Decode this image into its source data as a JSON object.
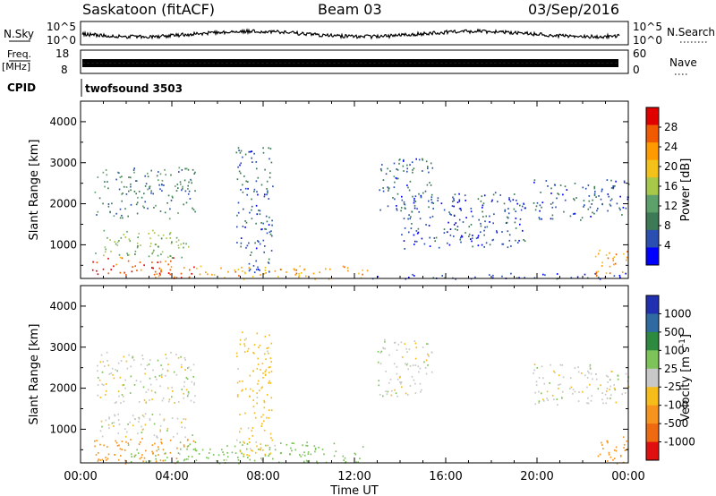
{
  "header": {
    "station": "Saskatoon (fitACF)",
    "beam": "Beam 03",
    "date": "03/Sep/2016"
  },
  "nsky_panel": {
    "label": "N.Sky",
    "left_ticks": [
      "10^5",
      "10^0"
    ],
    "right_ticks": [
      "10^5",
      "10^0"
    ],
    "right_label": "N.Search"
  },
  "freq_panel": {
    "label_top": "Freq.",
    "label_bottom": "[MHz]",
    "left_ticks": [
      "18",
      "8"
    ],
    "right_ticks": [
      "60",
      "0"
    ],
    "right_label": "Nave"
  },
  "cpid_panel": {
    "label": "CPID",
    "value": "twofsound 3503"
  },
  "colors": {
    "power_scale": [
      "#0000ff",
      "#2a4fb0",
      "#3e7a55",
      "#5ea06a",
      "#a8c84a",
      "#f2c21a",
      "#ff9a00",
      "#f05a00",
      "#e00000"
    ],
    "velocity_scale": [
      "#2030b0",
      "#2f6aa0",
      "#2e8a3e",
      "#7dc35a",
      "#c8c8c8",
      "#f6bd1a",
      "#f7941d",
      "#ee6a10",
      "#e01010"
    ]
  },
  "chart_data": [
    {
      "type": "heatmap",
      "name": "power",
      "ylabel": "Slant Range [km]",
      "yticks": [
        "1000",
        "2000",
        "3000",
        "4000"
      ],
      "ylim": [
        180,
        4500
      ],
      "xlim": [
        "00:00",
        "24:00"
      ],
      "xticks": [
        "00:00",
        "04:00",
        "08:00",
        "12:00",
        "16:00",
        "20:00",
        "00:00"
      ],
      "colorbar_label": "Power [dB]",
      "colorbar_ticks": [
        "4",
        "8",
        "12",
        "16",
        "20",
        "24",
        "28"
      ],
      "colorbar_range": [
        0,
        32
      ],
      "scatter_regions": [
        {
          "t0": 0.5,
          "t1": 5.0,
          "r0": 180,
          "r1": 700,
          "level": 27
        },
        {
          "t0": 5.0,
          "t1": 12.6,
          "r0": 180,
          "r1": 500,
          "level": 22
        },
        {
          "t0": 0.6,
          "t1": 4.8,
          "r0": 700,
          "r1": 1400,
          "level": 14
        },
        {
          "t0": 0.6,
          "t1": 5.0,
          "r0": 1650,
          "r1": 2900,
          "level": 9
        },
        {
          "t0": 6.8,
          "t1": 8.4,
          "r0": 300,
          "r1": 3400,
          "level": 6
        },
        {
          "t0": 13.0,
          "t1": 15.4,
          "r0": 1800,
          "r1": 3200,
          "level": 7
        },
        {
          "t0": 14.0,
          "t1": 19.5,
          "r0": 900,
          "r1": 2300,
          "level": 5
        },
        {
          "t0": 19.8,
          "t1": 24.0,
          "r0": 1600,
          "r1": 2600,
          "level": 6
        },
        {
          "t0": 22.5,
          "t1": 24.0,
          "r0": 180,
          "r1": 900,
          "level": 24
        },
        {
          "t0": 12.6,
          "t1": 24.0,
          "r0": 180,
          "r1": 320,
          "level": 4
        }
      ]
    },
    {
      "type": "heatmap",
      "name": "velocity",
      "ylabel": "Slant Range [km]",
      "yticks": [
        "1000",
        "2000",
        "3000",
        "4000"
      ],
      "ylim": [
        180,
        4500
      ],
      "xlim": [
        "00:00",
        "24:00"
      ],
      "xticks": [
        "00:00",
        "04:00",
        "08:00",
        "12:00",
        "16:00",
        "20:00",
        "00:00"
      ],
      "xlabel": "Time UT",
      "colorbar_label": "Velocity [m s^-1]",
      "colorbar_ticks": [
        "1000",
        "500",
        "100",
        "25",
        "-25",
        "-100",
        "-500",
        "-1000"
      ],
      "scatter_regions": [
        {
          "t0": 0.5,
          "t1": 5.0,
          "r0": 180,
          "r1": 800,
          "level": -150
        },
        {
          "t0": 0.6,
          "t1": 5.0,
          "r0": 800,
          "r1": 1400,
          "level": 0
        },
        {
          "t0": 2.0,
          "t1": 12.6,
          "r0": 180,
          "r1": 700,
          "level": 60
        },
        {
          "t0": 0.6,
          "t1": 5.0,
          "r0": 1650,
          "r1": 2900,
          "level": 0
        },
        {
          "t0": 6.8,
          "t1": 8.4,
          "r0": 300,
          "r1": 3400,
          "level": -60
        },
        {
          "t0": 13.0,
          "t1": 15.4,
          "r0": 1800,
          "r1": 3200,
          "level": 0
        },
        {
          "t0": 19.8,
          "t1": 24.0,
          "r0": 1600,
          "r1": 2600,
          "level": 0
        },
        {
          "t0": 22.5,
          "t1": 24.0,
          "r0": 180,
          "r1": 900,
          "level": -150
        }
      ]
    }
  ],
  "time_axis": {
    "xticks": [
      "00:00",
      "04:00",
      "08:00",
      "12:00",
      "16:00",
      "20:00",
      "00:00"
    ],
    "xlabel": "Time UT"
  }
}
